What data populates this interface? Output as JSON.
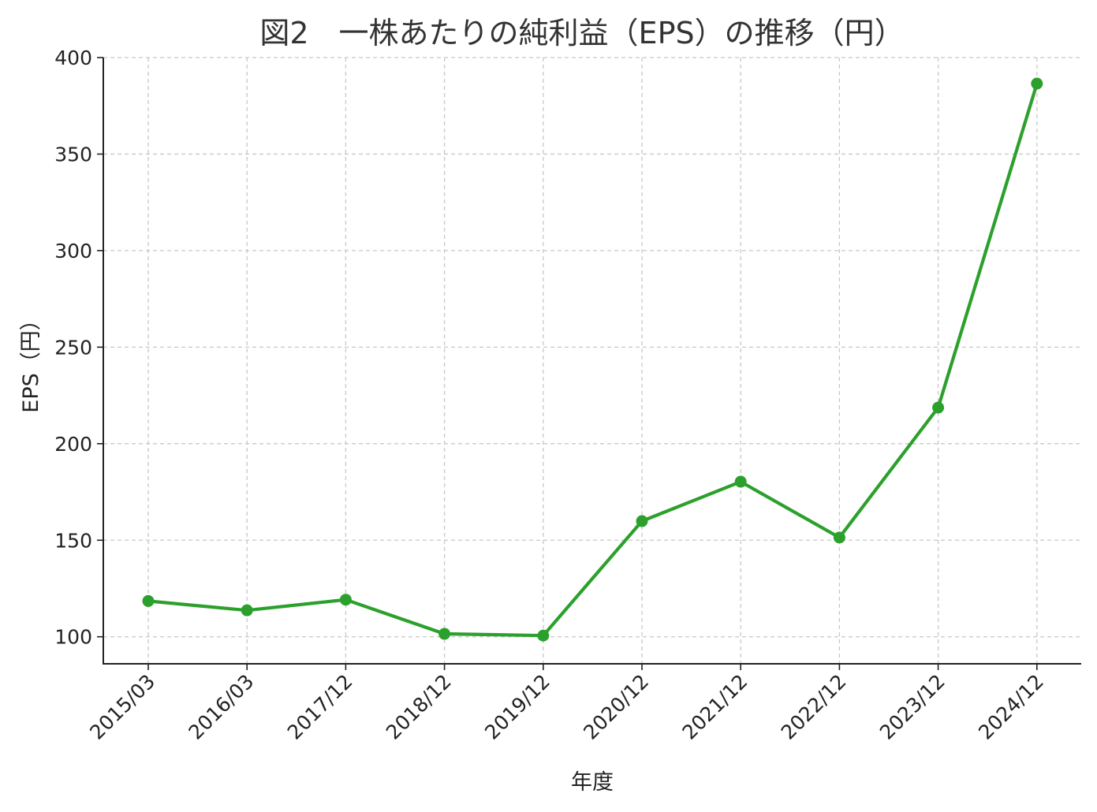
{
  "chart_data": {
    "type": "line",
    "title": "図2　一株あたりの純利益（EPS）の推移（円）",
    "xlabel": "年度",
    "ylabel": "EPS（円）",
    "categories": [
      "2015/03",
      "2016/03",
      "2017/12",
      "2018/12",
      "2019/12",
      "2020/12",
      "2021/12",
      "2022/12",
      "2023/12",
      "2024/12"
    ],
    "series": [
      {
        "values": [
          118.5,
          113.7,
          119.2,
          101.5,
          100.6,
          159.9,
          180.3,
          151.4,
          218.7,
          386.5
        ],
        "color": "#2ca02c",
        "marker": "circle"
      }
    ],
    "yticks": [
      100,
      150,
      200,
      250,
      300,
      350,
      400
    ],
    "ylim": [
      86,
      400
    ],
    "grid": true,
    "xtick_rotation": 45
  }
}
